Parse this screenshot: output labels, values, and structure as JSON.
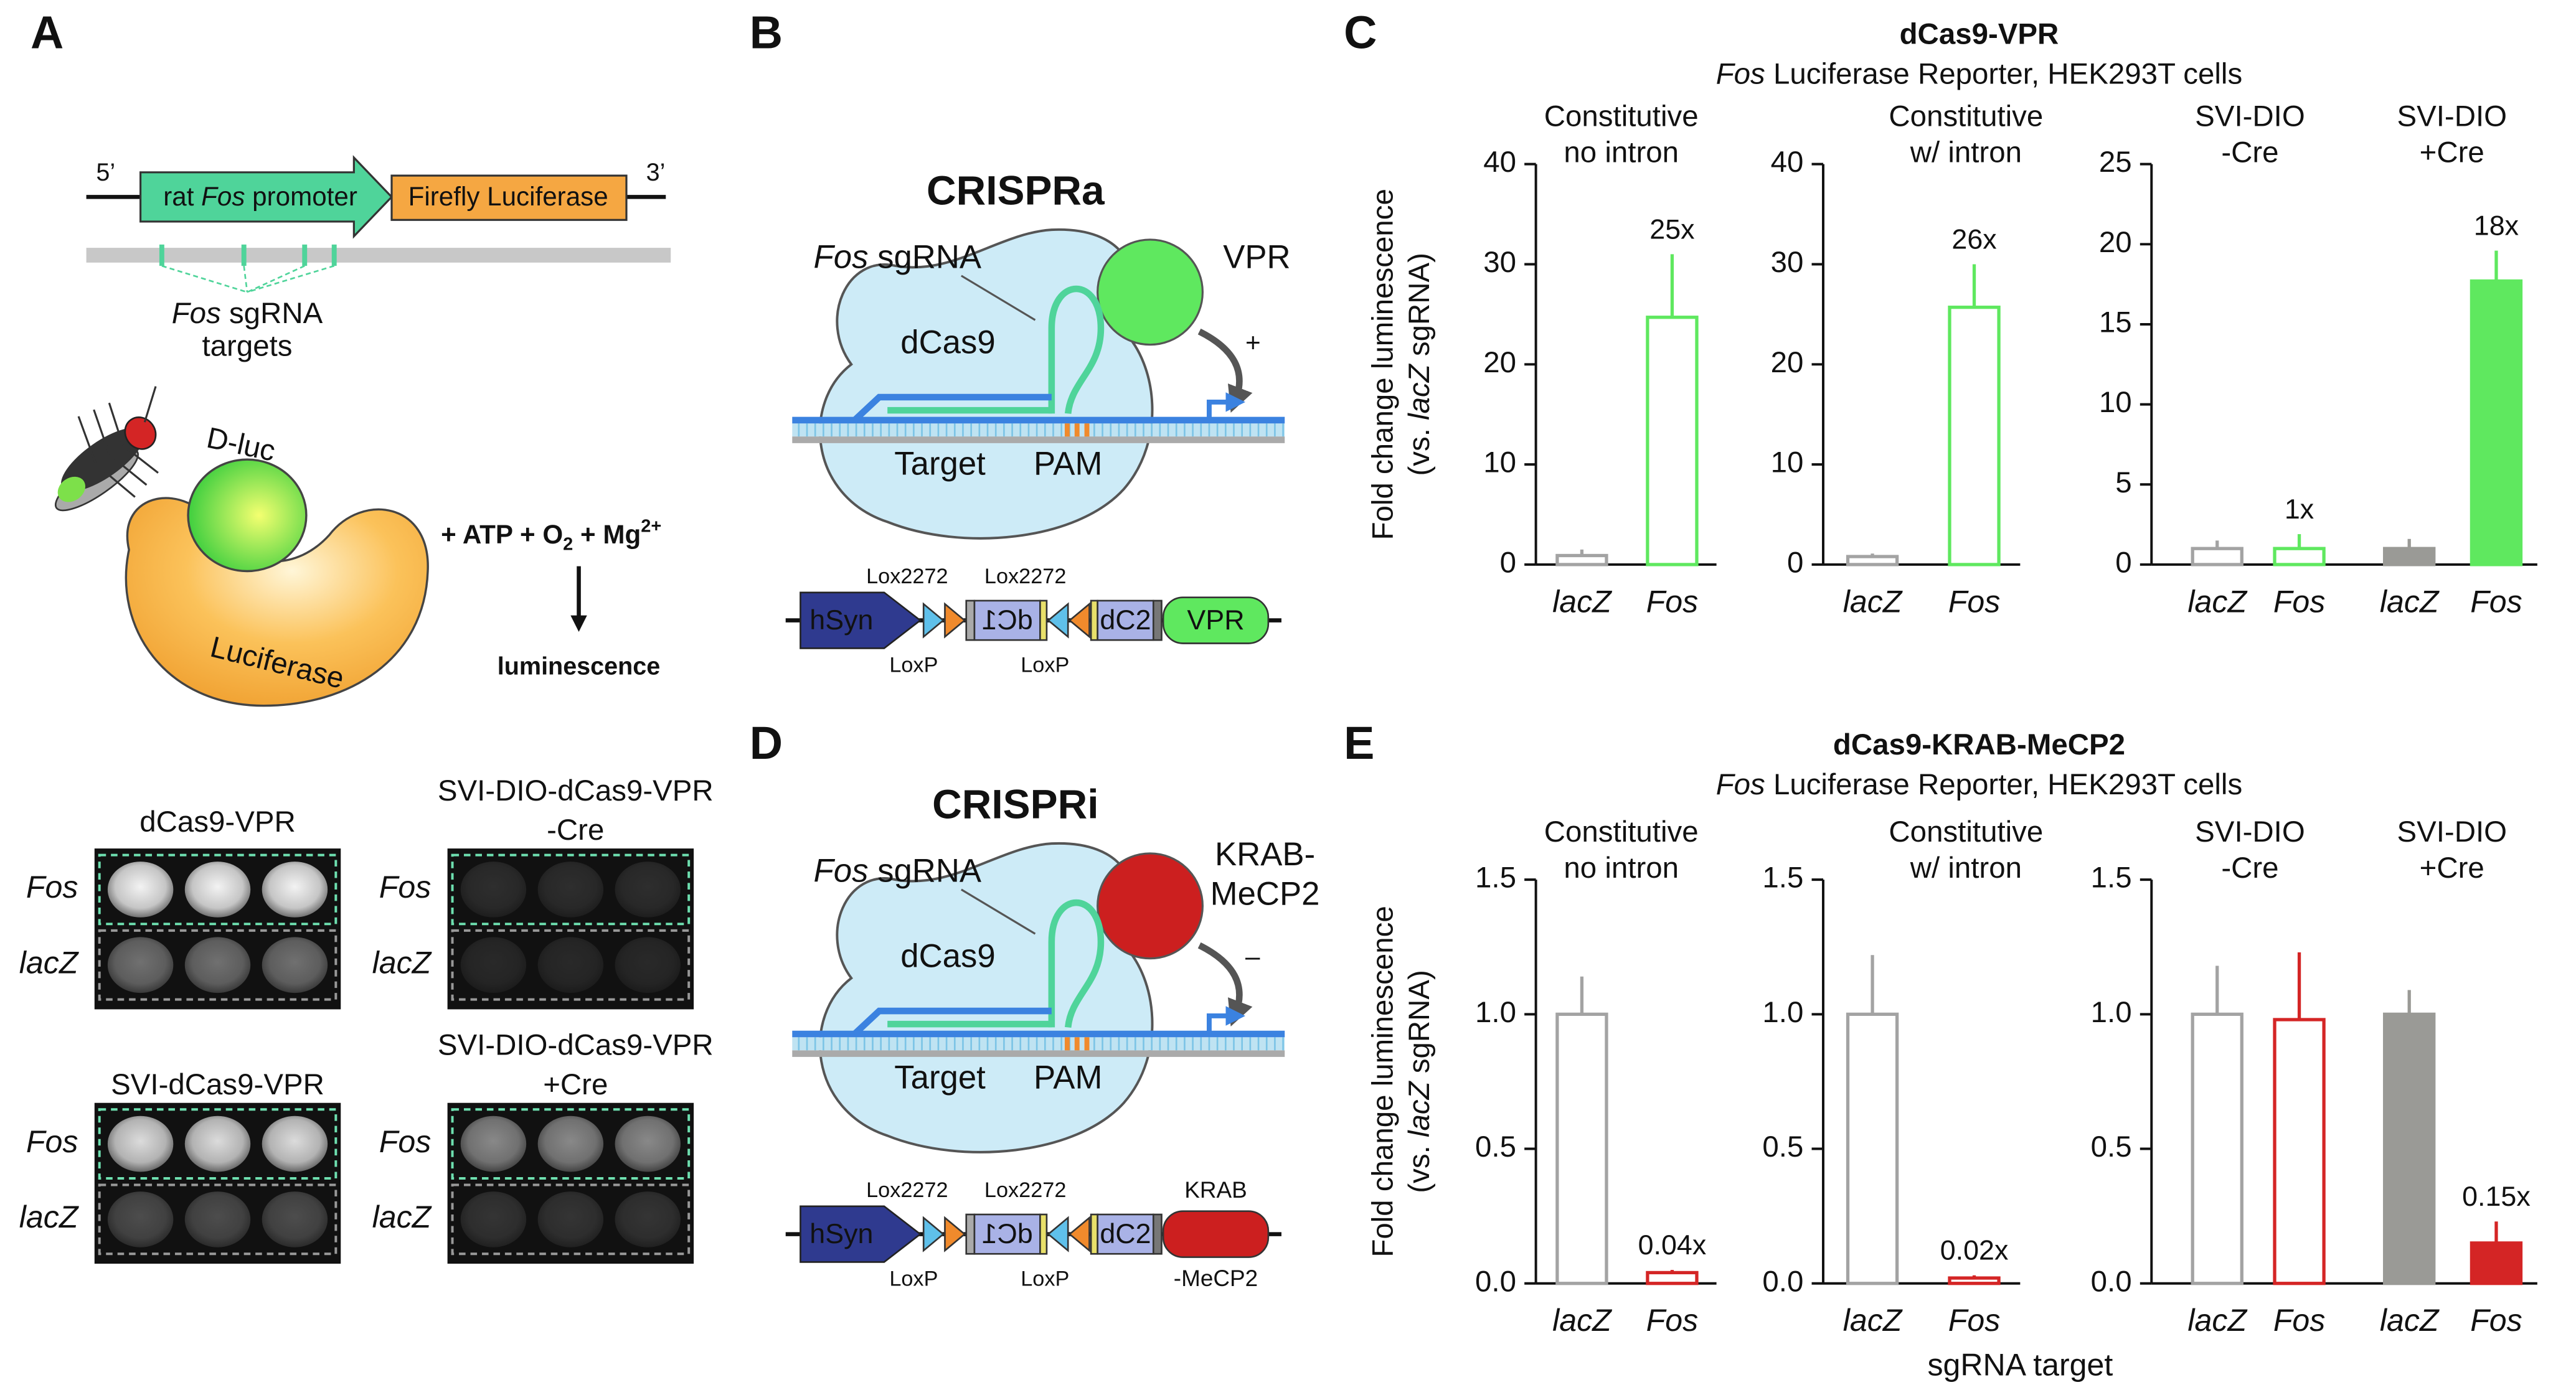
{
  "panel_labels": {
    "a": "A",
    "b": "B",
    "c": "C",
    "d": "D",
    "e": "E"
  },
  "panel_a": {
    "construct": {
      "five_prime": "5’",
      "three_prime": "3’",
      "promoter": [
        "rat ",
        "Fos",
        " promoter"
      ],
      "reporter": "Firefly Luciferase"
    },
    "targets": [
      "Fos",
      " sgRNA",
      "targets"
    ],
    "dluc": "D-luc",
    "enzyme": "Luciferase",
    "reaction": [
      "+ ATP + O",
      "2",
      " + Mg",
      "2+"
    ],
    "product": "luminescence",
    "wells": [
      {
        "title": [
          "dCas9-VPR"
        ],
        "rows": [
          "Fos",
          "lacZ"
        ]
      },
      {
        "title": [
          "SVI-DIO-dCas9-VPR",
          "-Cre"
        ],
        "rows": [
          "Fos",
          "lacZ"
        ]
      },
      {
        "title": [
          "SVI-dCas9-VPR"
        ],
        "rows": [
          "Fos",
          "lacZ"
        ]
      },
      {
        "title": [
          "SVI-DIO-dCas9-VPR",
          "+Cre"
        ],
        "rows": [
          "Fos",
          "lacZ"
        ]
      }
    ]
  },
  "panel_b": {
    "title": "CRISPRa",
    "sgrna": [
      "Fos",
      " sgRNA"
    ],
    "protein": "dCas9",
    "effector": [
      "VPR"
    ],
    "sign": "+",
    "target": "Target",
    "pam": "PAM",
    "vector": {
      "promoter": "hSyn",
      "lox2272": [
        "Lox2272",
        "Lox2272"
      ],
      "loxp": [
        "LoxP",
        "LoxP"
      ],
      "exon1": "dC1",
      "exon2": "dC2",
      "effector": [
        "VPR"
      ]
    }
  },
  "panel_d": {
    "title": "CRISPRi",
    "sgrna": [
      "Fos",
      " sgRNA"
    ],
    "protein": "dCas9",
    "effector": [
      "KRAB-",
      "MeCP2"
    ],
    "sign": "–",
    "target": "Target",
    "pam": "PAM",
    "vector": {
      "promoter": "hSyn",
      "lox2272": [
        "Lox2272",
        "Lox2272"
      ],
      "loxp": [
        "LoxP",
        "LoxP"
      ],
      "exon1": "dC1",
      "exon2": "dC2",
      "effector": [
        "KRAB",
        "-MeCP2"
      ]
    }
  },
  "chart_data": [
    {
      "type": "bar",
      "title": "dCas9-VPR",
      "subtitle": [
        "Fos",
        " Luciferase Reporter, HEK293T cells"
      ],
      "ylabel": [
        "Fold change luminescence",
        "(vs. ",
        "lacZ",
        " sgRNA)"
      ],
      "panels": [
        {
          "titles": [
            [
              "Constitutive",
              "no intron"
            ]
          ],
          "categories": [
            "lacZ",
            "Fos"
          ],
          "values": [
            0.9,
            24.7
          ],
          "errors": [
            0.6,
            6.3
          ],
          "value_labels": [
            null,
            "25x"
          ],
          "colors": [
            "#a3a3a3",
            "#5fe85f"
          ],
          "filled": [
            false,
            false
          ],
          "ylim": [
            0,
            40
          ],
          "yticks": [
            0,
            10,
            20,
            30,
            40
          ]
        },
        {
          "titles": [
            [
              "Constitutive",
              "w/ intron"
            ]
          ],
          "categories": [
            "lacZ",
            "Fos"
          ],
          "values": [
            0.8,
            25.7
          ],
          "errors": [
            0.3,
            4.3
          ],
          "value_labels": [
            null,
            "26x"
          ],
          "colors": [
            "#a3a3a3",
            "#5fe85f"
          ],
          "filled": [
            false,
            false
          ],
          "ylim": [
            0,
            40
          ],
          "yticks": [
            0,
            10,
            20,
            30,
            40
          ]
        },
        {
          "titles": [
            [
              "SVI-DIO",
              "-Cre"
            ],
            [
              "SVI-DIO",
              "+Cre"
            ]
          ],
          "categories": [
            "lacZ",
            "Fos",
            "lacZ",
            "Fos"
          ],
          "values": [
            1.0,
            1.0,
            1.0,
            17.7
          ],
          "errors": [
            0.5,
            0.9,
            0.6,
            1.9
          ],
          "value_labels": [
            null,
            "1x",
            null,
            "18x"
          ],
          "colors": [
            "#a3a3a3",
            "#5fe85f",
            "#9a9a96",
            "#5fe85f"
          ],
          "filled": [
            false,
            false,
            true,
            true
          ],
          "ylim": [
            0,
            25
          ],
          "yticks": [
            0,
            5,
            10,
            15,
            20,
            25
          ]
        }
      ]
    },
    {
      "type": "bar",
      "title": "dCas9-KRAB-MeCP2",
      "subtitle": [
        "Fos",
        " Luciferase Reporter, HEK293T cells"
      ],
      "ylabel": [
        "Fold change luminescence",
        "(vs. ",
        "lacZ",
        " sgRNA)"
      ],
      "xlabel": "sgRNA target",
      "panels": [
        {
          "titles": [
            [
              "Constitutive",
              "no intron"
            ]
          ],
          "categories": [
            "lacZ",
            "Fos"
          ],
          "values": [
            1.0,
            0.04
          ],
          "errors": [
            0.14,
            0.01
          ],
          "value_labels": [
            null,
            "0.04x"
          ],
          "colors": [
            "#a3a3a3",
            "#d42525"
          ],
          "filled": [
            false,
            false
          ],
          "ylim": [
            0,
            1.5
          ],
          "yticks": [
            {
              "value": 0,
              "label": "0.0"
            },
            0.5,
            {
              "value": 1,
              "label": "1.0"
            },
            1.5
          ]
        },
        {
          "titles": [
            [
              "Constitutive",
              "w/ intron"
            ]
          ],
          "categories": [
            "lacZ",
            "Fos"
          ],
          "values": [
            1.0,
            0.02
          ],
          "errors": [
            0.22,
            0.01
          ],
          "value_labels": [
            null,
            "0.02x"
          ],
          "colors": [
            "#a3a3a3",
            "#d42525"
          ],
          "filled": [
            false,
            false
          ],
          "ylim": [
            0,
            1.5
          ],
          "yticks": [
            {
              "value": 0,
              "label": "0.0"
            },
            0.5,
            {
              "value": 1,
              "label": "1.0"
            },
            1.5
          ]
        },
        {
          "titles": [
            [
              "SVI-DIO",
              "-Cre"
            ],
            [
              "SVI-DIO",
              "+Cre"
            ]
          ],
          "categories": [
            "lacZ",
            "Fos",
            "lacZ",
            "Fos"
          ],
          "values": [
            1.0,
            0.98,
            1.0,
            0.15
          ],
          "errors": [
            0.18,
            0.25,
            0.09,
            0.08
          ],
          "value_labels": [
            null,
            null,
            null,
            "0.15x"
          ],
          "colors": [
            "#a3a3a3",
            "#d42525",
            "#9a9a96",
            "#d42525"
          ],
          "filled": [
            false,
            false,
            true,
            true
          ],
          "ylim": [
            0,
            1.5
          ],
          "yticks": [
            {
              "value": 0,
              "label": "0.0"
            },
            0.5,
            {
              "value": 1,
              "label": "1.0"
            },
            1.5
          ]
        }
      ]
    }
  ]
}
